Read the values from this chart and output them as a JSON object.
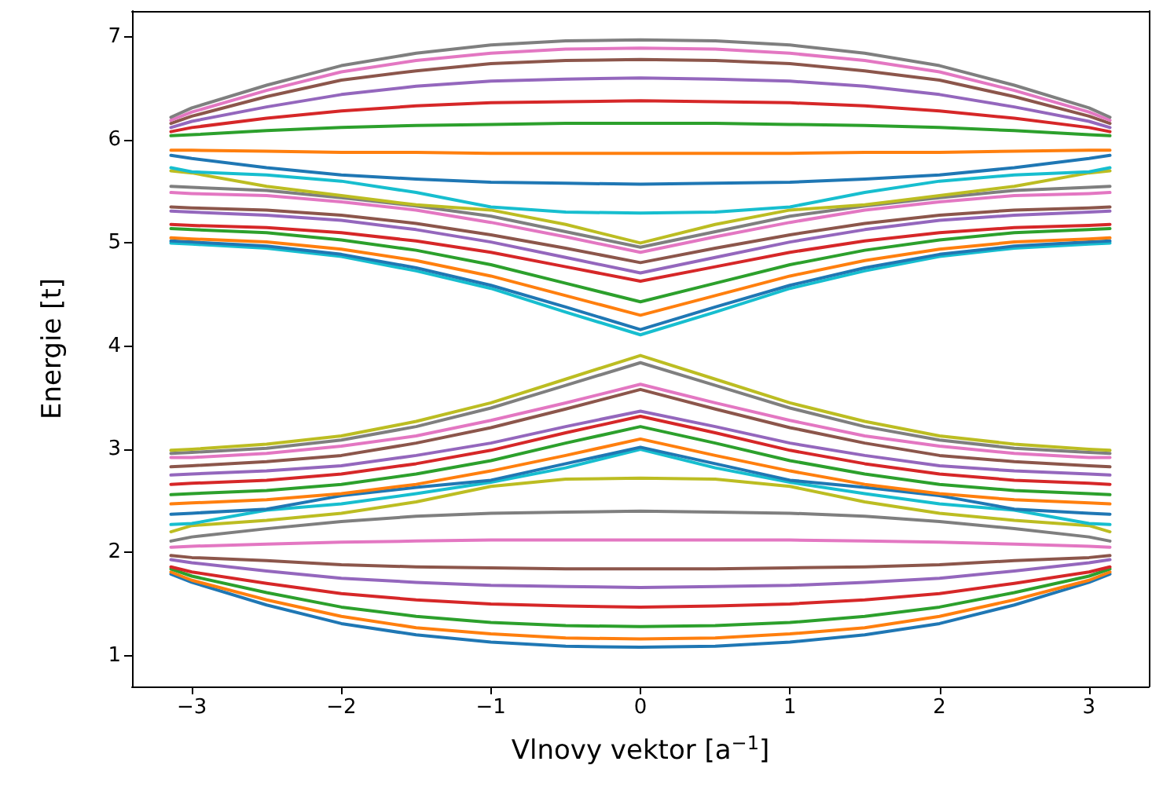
{
  "chart_data": {
    "type": "line",
    "xlabel": "Vlnovy vektor [a$^{−1}$]",
    "ylabel": "Energie [t]",
    "x": [
      -3.14,
      -3,
      -2.5,
      -2,
      -1.5,
      -1,
      -0.5,
      0,
      0.5,
      1,
      1.5,
      2,
      2.5,
      3,
      3.14
    ],
    "xlim": [
      -3.4,
      3.4
    ],
    "xticks": [
      {
        "value": -3,
        "label": "−3"
      },
      {
        "value": -2,
        "label": "−2"
      },
      {
        "value": -1,
        "label": "−1"
      },
      0,
      1,
      2,
      3
    ],
    "ylim": [
      0.7,
      7.25
    ],
    "yticks": [
      1,
      2,
      3,
      4,
      5,
      6,
      7
    ],
    "grid": false,
    "marker": "none",
    "line_style": "solid",
    "series": [
      {
        "color": "#1f77b4",
        "values": [
          1.79,
          1.71,
          1.49,
          1.31,
          1.2,
          1.13,
          1.09,
          1.08,
          1.09,
          1.13,
          1.2,
          1.31,
          1.49,
          1.71,
          1.79
        ]
      },
      {
        "color": "#ff7f0e",
        "values": [
          1.81,
          1.73,
          1.54,
          1.38,
          1.27,
          1.21,
          1.17,
          1.16,
          1.17,
          1.21,
          1.27,
          1.38,
          1.54,
          1.73,
          1.81
        ]
      },
      {
        "color": "#2ca02c",
        "values": [
          1.84,
          1.77,
          1.61,
          1.47,
          1.38,
          1.32,
          1.29,
          1.28,
          1.29,
          1.32,
          1.38,
          1.47,
          1.61,
          1.77,
          1.84
        ]
      },
      {
        "color": "#d62728",
        "values": [
          1.86,
          1.81,
          1.7,
          1.6,
          1.54,
          1.5,
          1.48,
          1.47,
          1.48,
          1.5,
          1.54,
          1.6,
          1.7,
          1.81,
          1.86
        ]
      },
      {
        "color": "#9467bd",
        "values": [
          1.93,
          1.9,
          1.82,
          1.75,
          1.71,
          1.68,
          1.67,
          1.66,
          1.67,
          1.68,
          1.71,
          1.75,
          1.82,
          1.9,
          1.93
        ]
      },
      {
        "color": "#8c564b",
        "values": [
          1.97,
          1.95,
          1.92,
          1.88,
          1.86,
          1.85,
          1.84,
          1.84,
          1.84,
          1.85,
          1.86,
          1.88,
          1.92,
          1.95,
          1.97
        ]
      },
      {
        "color": "#e377c2",
        "values": [
          2.05,
          2.06,
          2.08,
          2.1,
          2.11,
          2.12,
          2.12,
          2.12,
          2.12,
          2.12,
          2.11,
          2.1,
          2.08,
          2.06,
          2.05
        ]
      },
      {
        "color": "#7f7f7f",
        "values": [
          2.11,
          2.15,
          2.23,
          2.3,
          2.35,
          2.38,
          2.39,
          2.4,
          2.39,
          2.38,
          2.35,
          2.3,
          2.23,
          2.15,
          2.11
        ]
      },
      {
        "color": "#bcbd22",
        "values": [
          2.2,
          2.26,
          2.31,
          2.38,
          2.49,
          2.64,
          2.71,
          2.72,
          2.71,
          2.64,
          2.49,
          2.38,
          2.31,
          2.26,
          2.2
        ]
      },
      {
        "color": "#17becf",
        "values": [
          2.27,
          2.28,
          2.41,
          2.47,
          2.57,
          2.68,
          2.82,
          3.0,
          2.82,
          2.68,
          2.57,
          2.47,
          2.41,
          2.28,
          2.27
        ]
      },
      {
        "color": "#1f77b4",
        "values": [
          2.37,
          2.38,
          2.42,
          2.55,
          2.63,
          2.7,
          2.86,
          3.02,
          2.86,
          2.7,
          2.63,
          2.55,
          2.42,
          2.38,
          2.37
        ]
      },
      {
        "color": "#ff7f0e",
        "values": [
          2.47,
          2.48,
          2.51,
          2.57,
          2.66,
          2.79,
          2.94,
          3.1,
          2.94,
          2.79,
          2.66,
          2.57,
          2.51,
          2.48,
          2.47
        ]
      },
      {
        "color": "#2ca02c",
        "values": [
          2.56,
          2.57,
          2.6,
          2.66,
          2.76,
          2.89,
          3.06,
          3.22,
          3.06,
          2.89,
          2.76,
          2.66,
          2.6,
          2.57,
          2.56
        ]
      },
      {
        "color": "#d62728",
        "values": [
          2.66,
          2.67,
          2.7,
          2.76,
          2.86,
          2.99,
          3.16,
          3.32,
          3.16,
          2.99,
          2.86,
          2.76,
          2.7,
          2.67,
          2.66
        ]
      },
      {
        "color": "#9467bd",
        "values": [
          2.75,
          2.76,
          2.79,
          2.84,
          2.94,
          3.06,
          3.22,
          3.37,
          3.22,
          3.06,
          2.94,
          2.84,
          2.79,
          2.76,
          2.75
        ]
      },
      {
        "color": "#8c564b",
        "values": [
          2.83,
          2.84,
          2.88,
          2.94,
          3.06,
          3.21,
          3.39,
          3.58,
          3.39,
          3.21,
          3.06,
          2.94,
          2.88,
          2.84,
          2.83
        ]
      },
      {
        "color": "#e377c2",
        "values": [
          2.92,
          2.92,
          2.96,
          3.03,
          3.13,
          3.28,
          3.45,
          3.63,
          3.45,
          3.28,
          3.13,
          3.03,
          2.96,
          2.92,
          2.92
        ]
      },
      {
        "color": "#7f7f7f",
        "values": [
          2.96,
          2.97,
          3.01,
          3.09,
          3.22,
          3.4,
          3.62,
          3.84,
          3.62,
          3.4,
          3.22,
          3.09,
          3.01,
          2.97,
          2.96
        ]
      },
      {
        "color": "#bcbd22",
        "values": [
          2.99,
          3.0,
          3.05,
          3.13,
          3.27,
          3.45,
          3.68,
          3.91,
          3.68,
          3.45,
          3.27,
          3.13,
          3.05,
          3.0,
          2.99
        ]
      },
      {
        "color": "#17becf",
        "values": [
          5.0,
          4.99,
          4.95,
          4.87,
          4.73,
          4.56,
          4.33,
          4.11,
          4.33,
          4.56,
          4.73,
          4.87,
          4.95,
          4.99,
          5.0
        ]
      },
      {
        "color": "#1f77b4",
        "values": [
          5.02,
          5.01,
          4.97,
          4.89,
          4.76,
          4.59,
          4.38,
          4.16,
          4.38,
          4.59,
          4.76,
          4.89,
          4.97,
          5.01,
          5.02
        ]
      },
      {
        "color": "#ff7f0e",
        "values": [
          5.05,
          5.04,
          5.01,
          4.94,
          4.83,
          4.68,
          4.49,
          4.3,
          4.49,
          4.68,
          4.83,
          4.94,
          5.01,
          5.04,
          5.05
        ]
      },
      {
        "color": "#2ca02c",
        "values": [
          5.14,
          5.13,
          5.1,
          5.03,
          4.93,
          4.79,
          4.61,
          4.43,
          4.61,
          4.79,
          4.93,
          5.03,
          5.1,
          5.13,
          5.14
        ]
      },
      {
        "color": "#d62728",
        "values": [
          5.18,
          5.17,
          5.15,
          5.1,
          5.02,
          4.91,
          4.77,
          4.63,
          4.77,
          4.91,
          5.02,
          5.1,
          5.15,
          5.17,
          5.18
        ]
      },
      {
        "color": "#9467bd",
        "values": [
          5.31,
          5.3,
          5.27,
          5.22,
          5.13,
          5.01,
          4.86,
          4.71,
          4.86,
          5.01,
          5.13,
          5.22,
          5.27,
          5.3,
          5.31
        ]
      },
      {
        "color": "#8c564b",
        "values": [
          5.35,
          5.34,
          5.32,
          5.27,
          5.19,
          5.08,
          4.95,
          4.81,
          4.95,
          5.08,
          5.19,
          5.27,
          5.32,
          5.34,
          5.35
        ]
      },
      {
        "color": "#e377c2",
        "values": [
          5.49,
          5.48,
          5.46,
          5.4,
          5.32,
          5.2,
          5.06,
          4.91,
          5.06,
          5.2,
          5.32,
          5.4,
          5.46,
          5.48,
          5.49
        ]
      },
      {
        "color": "#7f7f7f",
        "values": [
          5.55,
          5.54,
          5.51,
          5.44,
          5.36,
          5.26,
          5.11,
          4.96,
          5.11,
          5.26,
          5.36,
          5.44,
          5.51,
          5.54,
          5.55
        ]
      },
      {
        "color": "#bcbd22",
        "values": [
          5.7,
          5.68,
          5.55,
          5.46,
          5.37,
          5.32,
          5.18,
          5.0,
          5.18,
          5.32,
          5.37,
          5.46,
          5.55,
          5.68,
          5.7
        ]
      },
      {
        "color": "#17becf",
        "values": [
          5.73,
          5.69,
          5.66,
          5.6,
          5.49,
          5.35,
          5.3,
          5.29,
          5.3,
          5.35,
          5.49,
          5.6,
          5.66,
          5.69,
          5.73
        ]
      },
      {
        "color": "#1f77b4",
        "values": [
          5.85,
          5.82,
          5.73,
          5.66,
          5.62,
          5.59,
          5.58,
          5.57,
          5.58,
          5.59,
          5.62,
          5.66,
          5.73,
          5.82,
          5.85
        ]
      },
      {
        "color": "#ff7f0e",
        "values": [
          5.9,
          5.9,
          5.89,
          5.88,
          5.88,
          5.87,
          5.87,
          5.87,
          5.87,
          5.87,
          5.88,
          5.88,
          5.89,
          5.9,
          5.9
        ]
      },
      {
        "color": "#2ca02c",
        "values": [
          6.04,
          6.05,
          6.09,
          6.12,
          6.14,
          6.15,
          6.16,
          6.16,
          6.16,
          6.15,
          6.14,
          6.12,
          6.09,
          6.05,
          6.04
        ]
      },
      {
        "color": "#d62728",
        "values": [
          6.08,
          6.12,
          6.21,
          6.28,
          6.33,
          6.36,
          6.37,
          6.38,
          6.37,
          6.36,
          6.33,
          6.28,
          6.21,
          6.12,
          6.08
        ]
      },
      {
        "color": "#9467bd",
        "values": [
          6.12,
          6.18,
          6.32,
          6.44,
          6.52,
          6.57,
          6.59,
          6.6,
          6.59,
          6.57,
          6.52,
          6.44,
          6.32,
          6.18,
          6.12
        ]
      },
      {
        "color": "#8c564b",
        "values": [
          6.16,
          6.23,
          6.42,
          6.58,
          6.67,
          6.74,
          6.77,
          6.78,
          6.77,
          6.74,
          6.67,
          6.58,
          6.42,
          6.23,
          6.16
        ]
      },
      {
        "color": "#e377c2",
        "values": [
          6.19,
          6.27,
          6.48,
          6.66,
          6.77,
          6.84,
          6.88,
          6.89,
          6.88,
          6.84,
          6.77,
          6.66,
          6.48,
          6.27,
          6.19
        ]
      },
      {
        "color": "#7f7f7f",
        "values": [
          6.22,
          6.31,
          6.53,
          6.72,
          6.84,
          6.92,
          6.96,
          6.97,
          6.96,
          6.92,
          6.84,
          6.72,
          6.53,
          6.31,
          6.22
        ]
      }
    ]
  }
}
